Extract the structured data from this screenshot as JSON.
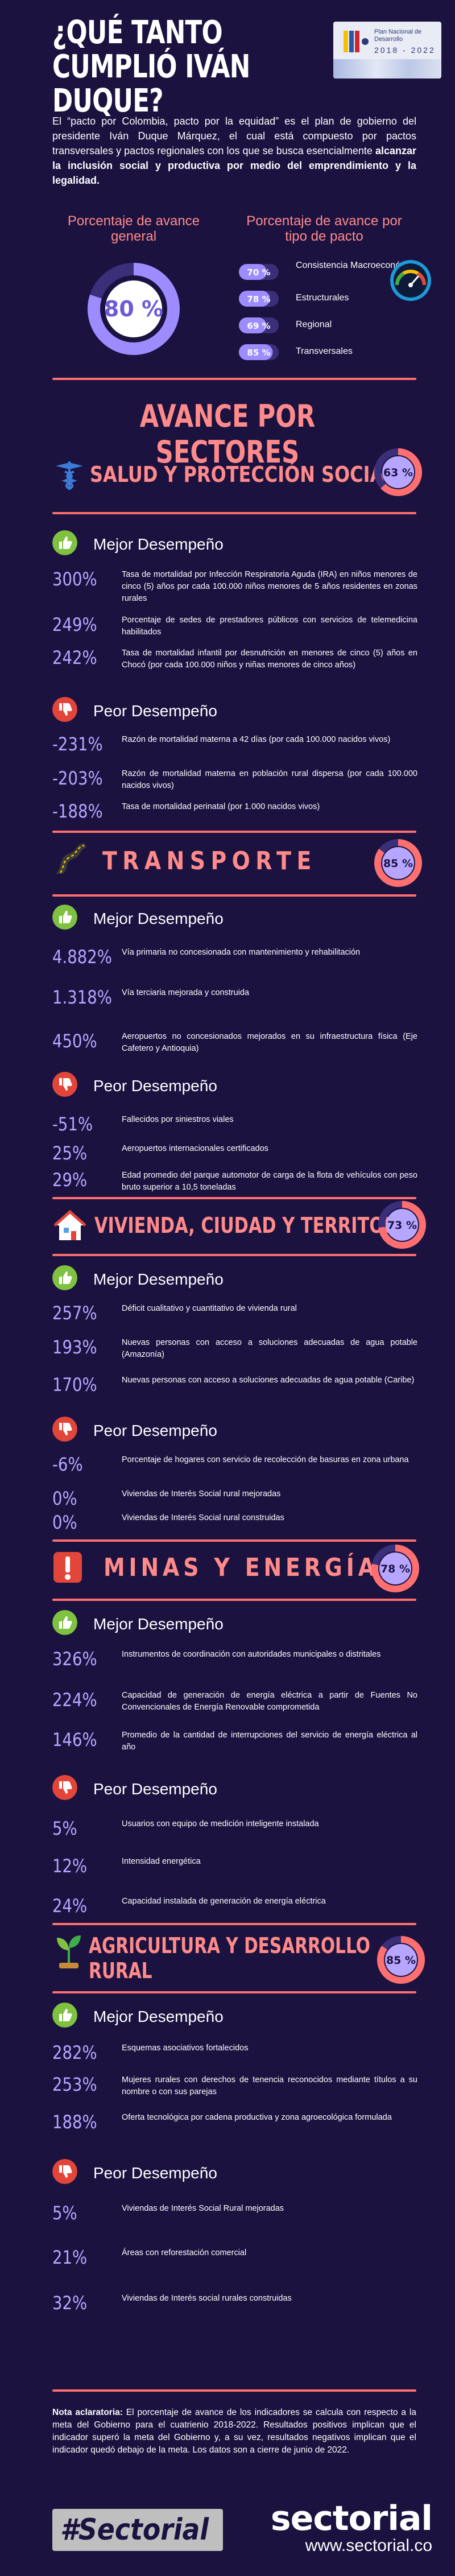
{
  "header": {
    "title": "¿Qué tanto cumplió Iván Duque?",
    "plan_card": {
      "title": "Plan Nacional de Desarrollo",
      "years": "2018 - 2022"
    }
  },
  "intro": {
    "text_a": "El “pacto por Colombia, pacto por la equidad” es el plan de gobierno del presidente Iván Duque Márquez, el cual está compuesto por pactos transversales y pactos regionales con los que se busca esencialmente ",
    "text_b": "alcanzar la inclusión social y productiva por medio del emprendimiento y la legalidad."
  },
  "summary": {
    "general_heading": "Porcentaje de avance general",
    "general_value": "80 %",
    "general_progress": 0.8,
    "pacto_heading": "Porcentaje de avance por tipo de pacto",
    "pactos": [
      {
        "value": "70 %",
        "label": "Consistencia Macroeconómica",
        "progress": 0.7
      },
      {
        "value": "78 %",
        "label": "Estructurales",
        "progress": 0.78
      },
      {
        "value": "69 %",
        "label": "Regional",
        "progress": 0.69
      },
      {
        "value": "85 %",
        "label": "Transversales",
        "progress": 0.85
      }
    ]
  },
  "sectors_heading": "Avance por sectores",
  "sectors": {
    "salud": {
      "title": "Salud y protección social",
      "value": "63 %",
      "progress": 0.63,
      "best_label": "Mejor Desempeño",
      "worst_label": "Peor Desempeño",
      "best": [
        {
          "num": "300%",
          "desc": "Tasa de mortalidad por Infección Respiratoria Aguda (IRA) en niños menores de cinco (5) años por cada 100.000 niños menores de 5 años residentes en zonas rurales"
        },
        {
          "num": "249%",
          "desc": "Porcentaje de sedes de prestadores públicos con servicios de telemedicina habilitados"
        },
        {
          "num": "242%",
          "desc": "Tasa de mortalidad infantil por desnutrición en menores de cinco (5) años en Chocó (por cada 100.000 niños y niñas menores de cinco años)"
        }
      ],
      "worst": [
        {
          "num": "-231%",
          "desc": "Razón de mortalidad materna a 42 días (por cada 100.000 nacidos vivos)"
        },
        {
          "num": "-203%",
          "desc": "Razón de mortalidad materna en población rural dispersa (por cada 100.000 nacidos vivos)"
        },
        {
          "num": "-188%",
          "desc": "Tasa de mortalidad perinatal (por 1.000 nacidos vivos)"
        }
      ]
    },
    "transporte": {
      "title": "Transporte",
      "value": "85 %",
      "progress": 0.85,
      "best_label": "Mejor Desempeño",
      "worst_label": "Peor Desempeño",
      "best": [
        {
          "num": "4.882%",
          "desc": "Vía primaria no concesionada con mantenimiento y rehabilitación"
        },
        {
          "num": "1.318%",
          "desc": "Vía terciaria mejorada y construida"
        },
        {
          "num": "450%",
          "desc": "Aeropuertos no concesionados mejorados en su infraestructura física (Eje Cafetero y Antioquia)"
        }
      ],
      "worst": [
        {
          "num": "-51%",
          "desc": "Fallecidos por siniestros viales"
        },
        {
          "num": "25%",
          "desc": "Aeropuertos internacionales certificados"
        },
        {
          "num": "29%",
          "desc": "Edad promedio del parque automotor de carga de la flota de vehículos con peso bruto superior a 10,5 toneladas"
        }
      ]
    },
    "vivienda": {
      "title": "Vivienda, ciudad y territorio",
      "value": "73 %",
      "progress": 0.73,
      "best_label": "Mejor Desempeño",
      "worst_label": "Peor Desempeño",
      "best": [
        {
          "num": "257%",
          "desc": "Déficit cualitativo y cuantitativo de vivienda rural"
        },
        {
          "num": "193%",
          "desc": "Nuevas personas con acceso a soluciones adecuadas de agua potable (Amazonía)"
        },
        {
          "num": "170%",
          "desc": "Nuevas personas con acceso a soluciones adecuadas de agua potable (Caribe)"
        }
      ],
      "worst": [
        {
          "num": "-6%",
          "desc": "Porcentaje de hogares con servicio de recolección de basuras en zona urbana"
        },
        {
          "num": "0%",
          "desc": "Viviendas de Interés Social rural mejoradas"
        },
        {
          "num": "0%",
          "desc": "Viviendas de Interés Social rural construidas"
        }
      ]
    },
    "minas": {
      "title": "Minas y energía",
      "value": "78 %",
      "progress": 0.78,
      "best_label": "Mejor Desempeño",
      "worst_label": "Peor Desempeño",
      "best": [
        {
          "num": "326%",
          "desc": "Instrumentos de coordinación con autoridades municipales o distritales"
        },
        {
          "num": "224%",
          "desc": "Capacidad de generación de energía eléctrica a partir de Fuentes No Convencionales de Energía Renovable comprometida"
        },
        {
          "num": "146%",
          "desc": "Promedio de la cantidad de interrupciones del servicio de energía eléctrica al año"
        }
      ],
      "worst": [
        {
          "num": "5%",
          "desc": "Usuarios con equipo de medición inteligente instalada"
        },
        {
          "num": "12%",
          "desc": "Intensidad energética"
        },
        {
          "num": "24%",
          "desc": "Capacidad instalada de generación de energía eléctrica"
        }
      ]
    },
    "agricultura": {
      "title_line1": "Agricultura y desarrollo",
      "title_line2": "rural",
      "value": "85 %",
      "progress": 0.85,
      "best_label": "Mejor Desempeño",
      "worst_label": "Peor Desempeño",
      "best": [
        {
          "num": "282%",
          "desc": "Esquemas asociativos fortalecidos"
        },
        {
          "num": "253%",
          "desc": "Mujeres rurales con derechos de tenencia reconocidos mediante títulos a su nombre o con sus parejas"
        },
        {
          "num": "188%",
          "desc": "Oferta tecnológica por cadena productiva y zona agroecológica formulada"
        }
      ],
      "worst": [
        {
          "num": "5%",
          "desc": "Viviendas de Interés Social Rural mejoradas"
        },
        {
          "num": "21%",
          "desc": "Áreas con reforestación comercial"
        },
        {
          "num": "32%",
          "desc": "Viviendas de Interés social rurales construidas"
        }
      ]
    }
  },
  "note": {
    "label": "Nota aclaratoria:",
    "text": " El porcentaje de avance de los indicadores se calcula con respecto a la meta del Gobierno para el cuatrienio 2018-2022. Resultados positivos implican que el indicador superó la meta del Gobierno y, a su vez, resultados negativos implican que el indicador quedó debajo de la meta. Los datos son a cierre de junio de 2022."
  },
  "footer": {
    "hashtag": "#Sectorial",
    "brand": "sectorial",
    "url": "www.sectorial.co"
  },
  "colors": {
    "background": "#1b1240",
    "accent": "#ff8a8a",
    "number": "#b7a6ff",
    "ring_track": "#3a2f78",
    "ring_fill": "#9d8cff",
    "good": "#7fc241",
    "bad": "#e2463a"
  }
}
